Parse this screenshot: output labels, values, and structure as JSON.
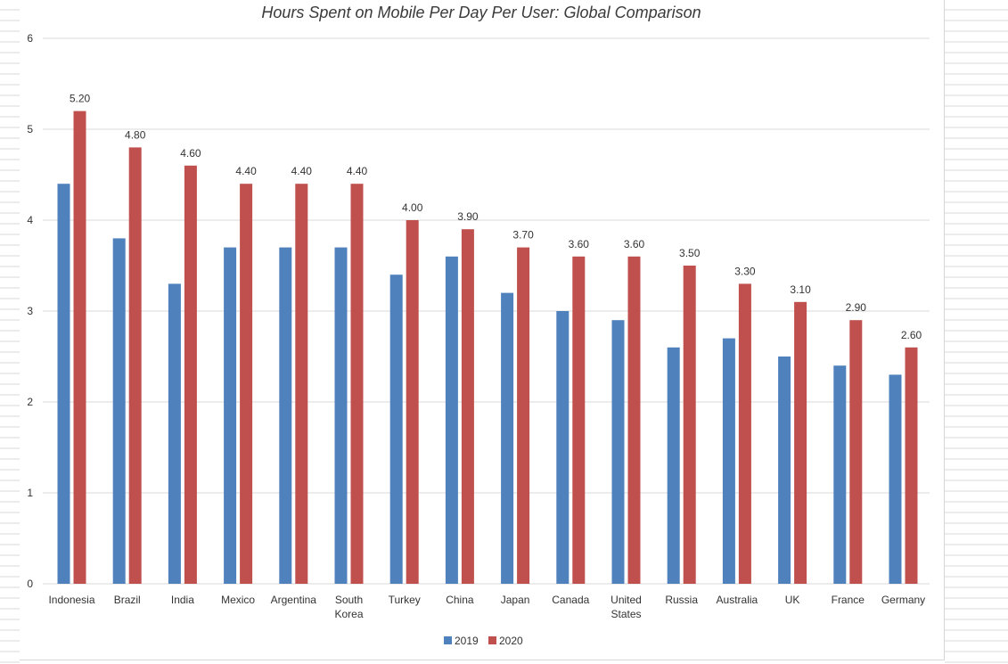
{
  "chart_data": {
    "type": "bar",
    "title": "Hours Spent on Mobile Per Day Per User: Global Comparison",
    "categories": [
      [
        "Indonesia"
      ],
      [
        "Brazil"
      ],
      [
        "India"
      ],
      [
        "Mexico"
      ],
      [
        "Argentina"
      ],
      [
        "South",
        "Korea"
      ],
      [
        "Turkey"
      ],
      [
        "China"
      ],
      [
        "Japan"
      ],
      [
        "Canada"
      ],
      [
        "United",
        "States"
      ],
      [
        "Russia"
      ],
      [
        "Australia"
      ],
      [
        "UK"
      ],
      [
        "France"
      ],
      [
        "Germany"
      ]
    ],
    "series": [
      {
        "name": "2019",
        "color": "#4f81bd",
        "values": [
          4.4,
          3.8,
          3.3,
          3.7,
          3.7,
          3.7,
          3.4,
          3.6,
          3.2,
          3.0,
          2.9,
          2.6,
          2.7,
          2.5,
          2.4,
          2.3
        ]
      },
      {
        "name": "2020",
        "color": "#c0504d",
        "values": [
          5.2,
          4.8,
          4.6,
          4.4,
          4.4,
          4.4,
          4.0,
          3.9,
          3.7,
          3.6,
          3.6,
          3.5,
          3.3,
          3.1,
          2.9,
          2.6
        ],
        "data_labels": [
          "5.20",
          "4.80",
          "4.60",
          "4.40",
          "4.40",
          "4.40",
          "4.00",
          "3.90",
          "3.70",
          "3.60",
          "3.60",
          "3.50",
          "3.30",
          "3.10",
          "2.90",
          "2.60"
        ]
      }
    ],
    "ylim": [
      0,
      6
    ],
    "yticks": [
      "0",
      "1",
      "2",
      "3",
      "4",
      "5",
      "6"
    ],
    "grid": true,
    "gridline_color": "#d9d9d9",
    "legend_placement": "bottom-center",
    "xlabel": "",
    "ylabel": ""
  }
}
